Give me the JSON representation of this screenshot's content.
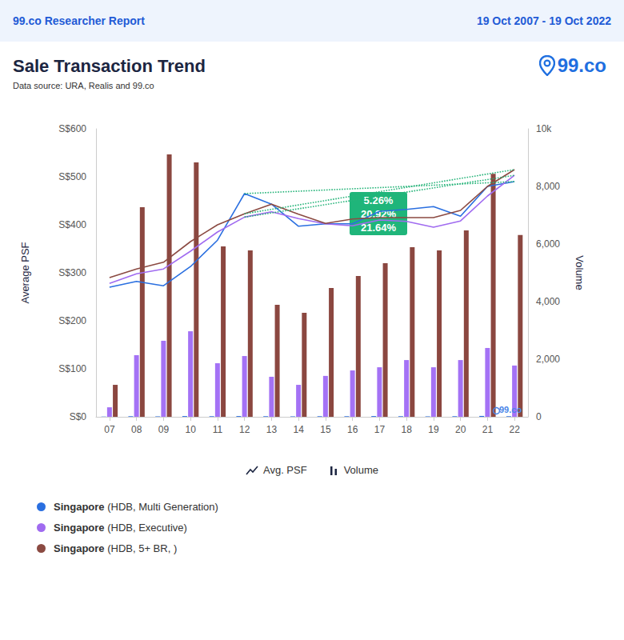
{
  "header": {
    "left": "99.co Researcher Report",
    "right": "19 Oct 2007 - 19 Oct 2022"
  },
  "logo": "99.co",
  "chart_data": {
    "type": "line",
    "title": "Sale Transaction Trend",
    "subtitle": "Data source: URA, Realis and 99.co",
    "watermark": "99.co",
    "y_label": "Average PSF",
    "y2_label": "Volume",
    "categories": [
      "07",
      "08",
      "09",
      "10",
      "11",
      "12",
      "13",
      "14",
      "15",
      "16",
      "17",
      "18",
      "19",
      "20",
      "21",
      "22"
    ],
    "series": [
      {
        "name": "Singapore (HDB, Multi Generation)",
        "type": "line",
        "color": "#2a6fe0",
        "values": [
          270,
          282,
          273,
          313,
          368,
          465,
          443,
          397,
          402,
          402,
          428,
          432,
          438,
          418,
          480,
          490
        ]
      },
      {
        "name": "Singapore (HDB, Executive)",
        "type": "line",
        "color": "#a06bf0",
        "values": [
          278,
          298,
          308,
          345,
          385,
          416,
          427,
          413,
          402,
          398,
          410,
          407,
          395,
          408,
          460,
          503
        ]
      },
      {
        "name": "Singapore (HDB, 5+ BR, )",
        "type": "line",
        "color": "#8b4a42",
        "values": [
          290,
          308,
          322,
          365,
          400,
          423,
          443,
          422,
          403,
          412,
          415,
          415,
          415,
          430,
          480,
          515
        ]
      },
      {
        "name": "Singapore (HDB, Multi Generation)",
        "type": "bar",
        "axis": "y2",
        "color": "#2a6fe0",
        "values": [
          8,
          20,
          15,
          25,
          20,
          25,
          20,
          15,
          20,
          20,
          25,
          20,
          15,
          20,
          30,
          20
        ]
      },
      {
        "name": "Singapore (HDB, Executive)",
        "type": "bar",
        "axis": "y2",
        "color": "#a472f5",
        "values": [
          330,
          2140,
          2640,
          2970,
          1860,
          2110,
          1390,
          1110,
          1420,
          1610,
          1720,
          1970,
          1720,
          1970,
          2390,
          1780
        ]
      },
      {
        "name": "Singapore (HDB, 5+ BR, )",
        "type": "bar",
        "axis": "y2",
        "color": "#8b4740",
        "values": [
          1110,
          7280,
          9110,
          8830,
          5920,
          5780,
          3890,
          3610,
          4470,
          4890,
          5330,
          5890,
          5780,
          6470,
          8440,
          6310
        ]
      }
    ],
    "ylim": [
      0,
      600
    ],
    "yticks": [
      {
        "value": 0,
        "label": "S$0"
      },
      {
        "value": 100,
        "label": "S$100"
      },
      {
        "value": 200,
        "label": "S$200"
      },
      {
        "value": 300,
        "label": "S$300"
      },
      {
        "value": 400,
        "label": "S$400"
      },
      {
        "value": 500,
        "label": "S$500"
      },
      {
        "value": 600,
        "label": "S$600"
      }
    ],
    "y2lim": [
      0,
      10000
    ],
    "y2ticks": [
      0,
      {
        "value": 2000,
        "label": "2,000"
      },
      {
        "value": 4000,
        "label": "4,000"
      },
      {
        "value": 6000,
        "label": "6,000"
      },
      {
        "value": 8000,
        "label": "8,000"
      },
      {
        "value": 10000,
        "label": "10k"
      }
    ],
    "grid": false,
    "legend": "bottom",
    "legend_kinds": [
      {
        "type": "line",
        "label": "Avg. PSF"
      },
      {
        "type": "bar",
        "label": "Volume"
      }
    ],
    "trend": {
      "from": "12",
      "to": "22"
    },
    "annotation": [
      "5.26%",
      "20.92%",
      "21.64%"
    ]
  }
}
